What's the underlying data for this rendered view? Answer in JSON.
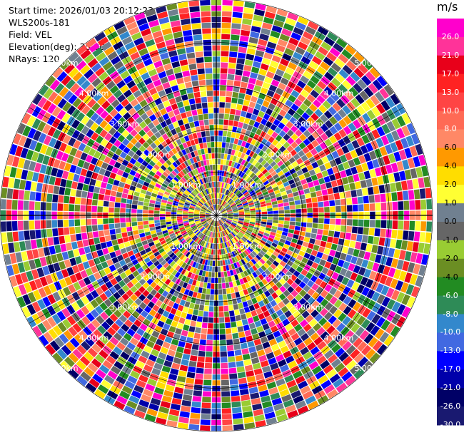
{
  "header": {
    "start_time": "Start time: 2026/01/03 20:12:23",
    "instrument": "WLS200s-181",
    "field": "Field: VEL",
    "elevation": "Elevation(deg): 35.00",
    "nrays": "NRays: 120"
  },
  "chart_data": {
    "type": "heatmap",
    "projection": "polar (PPI)",
    "range_ring_labels": [
      "1.00km",
      "2.00km",
      "3.00km",
      "4.00km",
      "5.00km"
    ],
    "range_km_max": 5.0,
    "n_rays": 120,
    "colorbar": {
      "unit": "m/s",
      "ticks": [
        26.0,
        21.0,
        17.0,
        13.0,
        10.0,
        8.0,
        6.0,
        4.0,
        2.0,
        1.0,
        0.0,
        -1.0,
        -2.0,
        -4.0,
        -6.0,
        -8.0,
        -10.0,
        -13.0,
        -17.0,
        -21.0,
        -26.0,
        -30.0
      ],
      "tick_labels": [
        "26.0",
        "21.0",
        "17.0",
        "13.0",
        "10.0",
        "8.0",
        "6.0",
        "4.0",
        "2.0",
        "1.0",
        "0.0",
        "-1.0",
        "-2.0",
        "-4.0",
        "-6.0",
        "-8.0",
        "-10.0",
        "-13.0",
        "-17.0",
        "-21.0",
        "-26.0",
        "-30.0"
      ],
      "bins": [
        {
          "low": 26,
          "high": 30,
          "color": "#ff00cc"
        },
        {
          "low": 21,
          "high": 26,
          "color": "#ff3399"
        },
        {
          "low": 17,
          "high": 21,
          "color": "#e8001a"
        },
        {
          "low": 13,
          "high": 17,
          "color": "#ff2222"
        },
        {
          "low": 10,
          "high": 13,
          "color": "#ff4444"
        },
        {
          "low": 8,
          "high": 10,
          "color": "#ff6a55"
        },
        {
          "low": 6,
          "high": 8,
          "color": "#ff8866"
        },
        {
          "low": 4,
          "high": 6,
          "color": "#ff9900"
        },
        {
          "low": 2,
          "high": 4,
          "color": "#ffdd00"
        },
        {
          "low": 1,
          "high": 2,
          "color": "#ffff33"
        },
        {
          "low": 0,
          "high": 1,
          "color": "#708090"
        },
        {
          "low": -1,
          "high": 0,
          "color": "#666666"
        },
        {
          "low": -2,
          "high": -1,
          "color": "#99cc33"
        },
        {
          "low": -4,
          "high": -2,
          "color": "#6b8e23"
        },
        {
          "low": -6,
          "high": -4,
          "color": "#228b22"
        },
        {
          "low": -8,
          "high": -6,
          "color": "#2e8b57"
        },
        {
          "low": -10,
          "high": -8,
          "color": "#3388cc"
        },
        {
          "low": -13,
          "high": -10,
          "color": "#4169e1"
        },
        {
          "low": -17,
          "high": -13,
          "color": "#0000ff"
        },
        {
          "low": -21,
          "high": -17,
          "color": "#0000aa"
        },
        {
          "low": -26,
          "high": -21,
          "color": "#000066"
        },
        {
          "low": -30,
          "high": -26,
          "color": "#191970"
        }
      ]
    }
  }
}
